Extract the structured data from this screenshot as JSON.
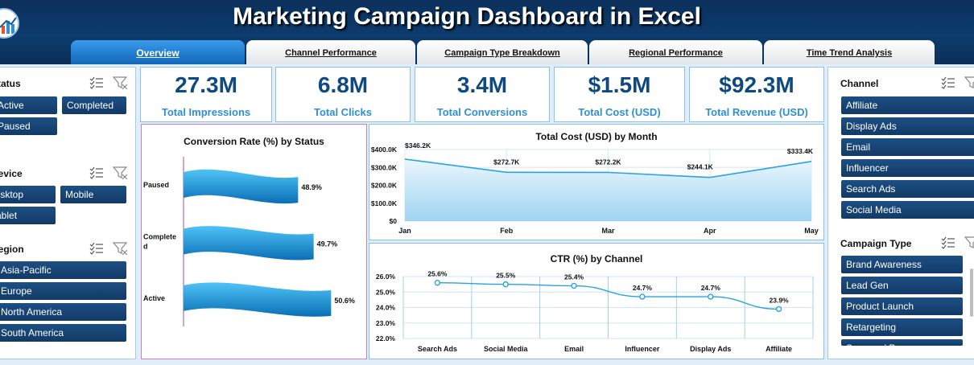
{
  "header": {
    "title": "Marketing Campaign Dashboard in Excel"
  },
  "logo": {
    "icon": "chart-logo-icon"
  },
  "tabs": [
    {
      "label": "Overview",
      "active": true
    },
    {
      "label": "Channel Performance",
      "active": false
    },
    {
      "label": "Campaign Type Breakdown",
      "active": false
    },
    {
      "label": "Regional Performance",
      "active": false
    },
    {
      "label": "Time Trend Analysis",
      "active": false
    }
  ],
  "left_slicers": {
    "status": {
      "title": "Status",
      "items": [
        "Active",
        "Completed",
        "Paused"
      ]
    },
    "device": {
      "title": "Device",
      "items": [
        "Desktop",
        "Mobile",
        "Tablet"
      ]
    },
    "region": {
      "title": "Region",
      "items": [
        "Asia-Pacific",
        "Europe",
        "North America",
        "South America"
      ]
    }
  },
  "right_slicers": {
    "channel": {
      "title": "Channel",
      "items": [
        "Affiliate",
        "Display Ads",
        "Email",
        "Influencer",
        "Search Ads",
        "Social Media"
      ]
    },
    "campaign_type": {
      "title": "Campaign Type",
      "items": [
        "Brand Awareness",
        "Lead Gen",
        "Product Launch",
        "Retargeting",
        "Seasonal Promo"
      ]
    }
  },
  "kpis": [
    {
      "value": "27.3M",
      "label": "Total Impressions"
    },
    {
      "value": "6.8M",
      "label": "Total Clicks"
    },
    {
      "value": "3.4M",
      "label": "Total Conversions"
    },
    {
      "value": "$1.5M",
      "label": "Total Cost (USD)"
    },
    {
      "value": "$92.3M",
      "label": "Total Revenue (USD)"
    }
  ],
  "colors": {
    "header": "#0d3c6e",
    "slicer": "#1d4f84",
    "kpi_value": "#0e4a80",
    "kpi_label": "#2f8fd6",
    "line": "#29a3e0"
  },
  "chart_data": [
    {
      "type": "bar",
      "title": "Conversion Rate (%) by Status",
      "categories": [
        "Paused",
        "Completed",
        "Active"
      ],
      "values": [
        48.9,
        49.7,
        50.6
      ],
      "data_labels": [
        "48.9%",
        "49.7%",
        "50.6%"
      ]
    },
    {
      "type": "area",
      "title": "Total Cost (USD) by Month",
      "categories": [
        "Jan",
        "Feb",
        "Mar",
        "Apr",
        "May"
      ],
      "values": [
        346.2,
        272.7,
        272.2,
        244.1,
        333.4
      ],
      "data_labels": [
        "$346.2K",
        "$272.7K",
        "$272.2K",
        "$244.1K",
        "$333.4K"
      ],
      "yticks": [
        "$0",
        "$100.0K",
        "$200.0K",
        "$300.0K",
        "$400.0K"
      ],
      "ylim": [
        0,
        400
      ]
    },
    {
      "type": "line",
      "title": "CTR (%) by Channel",
      "categories": [
        "Search Ads",
        "Social Media",
        "Email",
        "Influencer",
        "Display Ads",
        "Affiliate"
      ],
      "values": [
        25.6,
        25.5,
        25.4,
        24.7,
        24.7,
        23.9
      ],
      "data_labels": [
        "25.6%",
        "25.5%",
        "25.4%",
        "24.7%",
        "24.7%",
        "23.9%"
      ],
      "yticks": [
        "22.0%",
        "23.0%",
        "24.0%",
        "25.0%",
        "26.0%"
      ],
      "ylim": [
        22,
        26
      ]
    }
  ]
}
